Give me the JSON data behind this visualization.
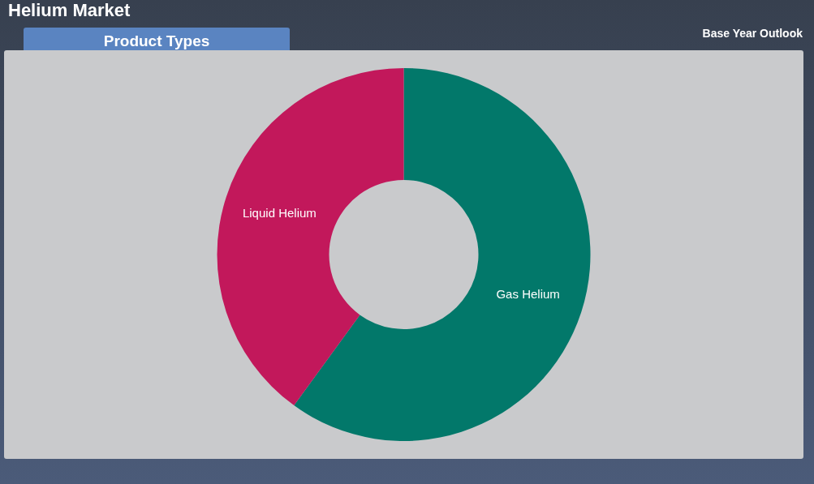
{
  "chart_data": {
    "type": "donut",
    "title": "Helium Market",
    "subtitle": "Product Types",
    "annotations": [
      "Base Year Outlook"
    ],
    "categories": [
      "Gas Helium",
      "Liquid Helium"
    ],
    "values": [
      60,
      40
    ],
    "colors": [
      "#02786a",
      "#c2185b"
    ],
    "legend": false
  }
}
